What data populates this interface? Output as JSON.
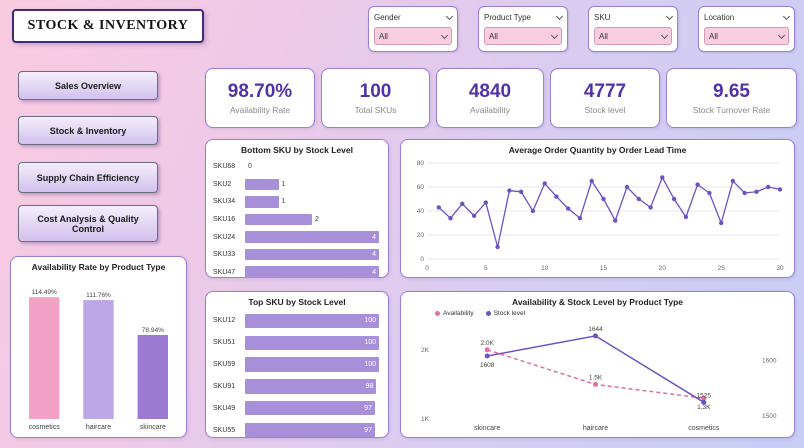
{
  "title": "STOCK & INVENTORY",
  "colors": {
    "accent_purple": "#5232a8",
    "bar_purple": "#a78fd9",
    "line_purple": "#6e52c3",
    "pink": "#e56ca8",
    "card_border": "#9a7fd6"
  },
  "filters": [
    {
      "label": "Gender",
      "value": "All"
    },
    {
      "label": "Product Type",
      "value": "All"
    },
    {
      "label": "SKU",
      "value": "All"
    },
    {
      "label": "Location",
      "value": "All"
    }
  ],
  "nav": [
    {
      "label": "Sales Overview"
    },
    {
      "label": "Stock & Inventory"
    },
    {
      "label": "Supply Chain Efficiency"
    },
    {
      "label": "Cost Analysis & Quality Control"
    }
  ],
  "kpis": [
    {
      "value": "98.70%",
      "label": "Availability Rate"
    },
    {
      "value": "100",
      "label": "Total SKUs"
    },
    {
      "value": "4840",
      "label": "Availability"
    },
    {
      "value": "4777",
      "label": "Stock level"
    },
    {
      "value": "9.65",
      "label": "Stock Turnover Rate"
    }
  ],
  "chart_data": [
    {
      "id": "availability_rate_by_product_type",
      "type": "bar",
      "title": "Availability Rate by Product Type",
      "categories": [
        "cosmetics",
        "haircare",
        "skincare"
      ],
      "values": [
        114.49,
        111.76,
        78.94
      ],
      "data_labels": [
        "114.49%",
        "111.76%",
        "78.94%"
      ],
      "bar_colors": [
        "#f2a3c5",
        "#bda6e6",
        "#9d7ad2"
      ],
      "ylim": [
        0,
        125
      ]
    },
    {
      "id": "bottom_sku_by_stock_level",
      "type": "hbar",
      "title": "Bottom SKU by Stock Level",
      "categories": [
        "SKU68",
        "SKU2",
        "SKU34",
        "SKU16",
        "SKU24",
        "SKU33",
        "SKU47"
      ],
      "values": [
        0,
        1,
        1,
        2,
        4,
        4,
        4
      ],
      "xlim": [
        0,
        4
      ],
      "bar_color": "#a78fd9"
    },
    {
      "id": "avg_order_quantity_by_lead_time",
      "type": "line",
      "title": "Average Order Quantity by Order Lead Time",
      "x": [
        1,
        2,
        3,
        4,
        5,
        6,
        7,
        8,
        9,
        10,
        11,
        12,
        13,
        14,
        15,
        16,
        17,
        18,
        19,
        20,
        21,
        22,
        23,
        24,
        25,
        26,
        27,
        28,
        29,
        30
      ],
      "values": [
        43,
        34,
        46,
        36,
        47,
        10,
        57,
        56,
        40,
        63,
        52,
        42,
        34,
        65,
        50,
        32,
        60,
        50,
        43,
        68,
        50,
        35,
        62,
        55,
        30,
        65,
        55,
        56,
        60,
        58
      ],
      "xlim": [
        0,
        30
      ],
      "xticks": [
        0,
        5,
        10,
        15,
        20,
        25,
        30
      ],
      "ylim": [
        0,
        80
      ],
      "yticks": [
        0,
        20,
        40,
        60,
        80
      ],
      "line_color": "#6e52c3",
      "grid": true
    },
    {
      "id": "top_sku_by_stock_level",
      "type": "hbar",
      "title": "Top SKU by Stock Level",
      "categories": [
        "SKU12",
        "SKU51",
        "SKU59",
        "SKU91",
        "SKU49",
        "SKU55"
      ],
      "values": [
        100,
        100,
        100,
        98,
        97,
        97
      ],
      "xlim": [
        0,
        100
      ],
      "bar_color": "#a78fd9"
    },
    {
      "id": "availability_stock_by_product_type",
      "type": "multiline",
      "title": "Availability & Stock Level by Product Type",
      "categories": [
        "skincare",
        "haircare",
        "cosmetics"
      ],
      "series": [
        {
          "name": "Availability",
          "axis": "left",
          "color": "#e56ca8",
          "dash": true,
          "values": [
            2000,
            1500,
            1300
          ],
          "labels": [
            "2.0K",
            "1.5K",
            "1.3K"
          ],
          "label_positions": [
            "above",
            "above",
            "below"
          ]
        },
        {
          "name": "Stock level",
          "axis": "right",
          "color": "#6e52c3",
          "dash": false,
          "values": [
            1608,
            1644,
            1525
          ],
          "labels": [
            "1608",
            "1644",
            "1525"
          ],
          "label_positions": [
            "below",
            "above",
            "above"
          ]
        }
      ],
      "left_axis": {
        "range": [
          1000,
          2330
        ],
        "ticks": [
          {
            "value": 2000,
            "label": "2K"
          },
          {
            "value": 1000,
            "label": "1K"
          }
        ]
      },
      "right_axis": {
        "range": [
          1495,
          1660
        ],
        "ticks": [
          {
            "value": 1600,
            "label": "1600"
          },
          {
            "value": 1500,
            "label": "1500"
          }
        ]
      },
      "legend_position": "top-left"
    }
  ]
}
